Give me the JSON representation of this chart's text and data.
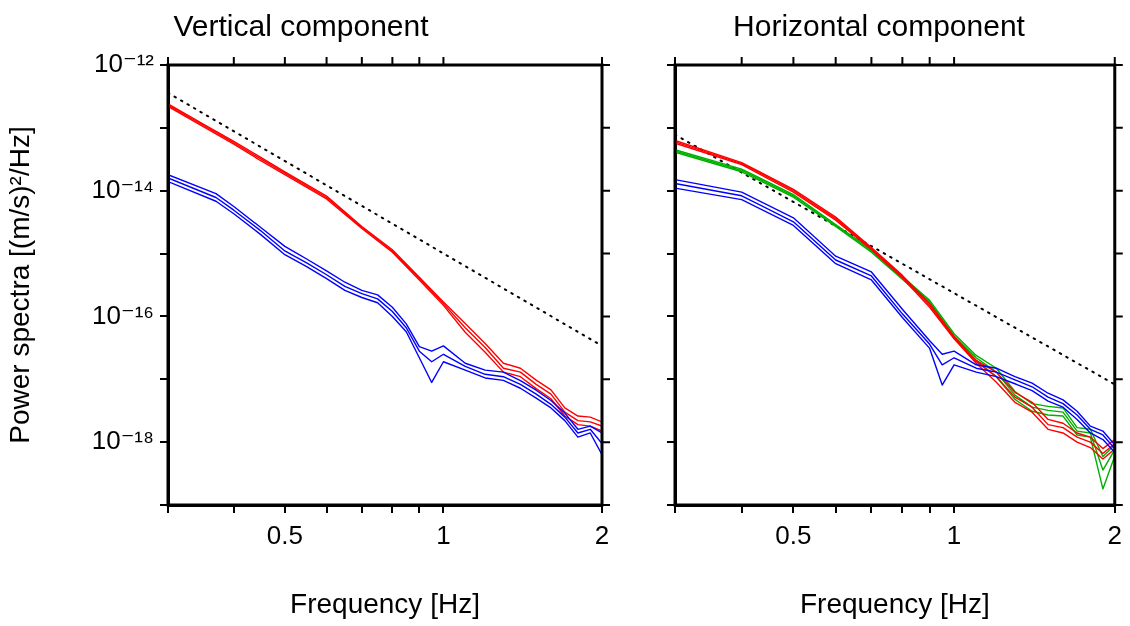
{
  "chart_data": [
    {
      "type": "line",
      "title": "Vertical component",
      "xlabel": "Frequency [Hz]",
      "ylabel": "Power spectra [(m/s)²/Hz]",
      "log": "xy",
      "grid": false,
      "marker": "none",
      "xlim": [
        0.3,
        2
      ],
      "xticks": [
        {
          "value": 0.3,
          "label": null
        },
        {
          "value": 0.4,
          "label": null
        },
        0.5,
        {
          "value": 0.6,
          "label": null
        },
        {
          "value": 0.7,
          "label": null
        },
        {
          "value": 0.8,
          "label": null
        },
        {
          "value": 0.9,
          "label": null
        },
        1,
        2
      ],
      "ylim": [
        1e-19,
        1e-12
      ],
      "yticks": [
        {
          "value": 1e-19,
          "label": null
        },
        {
          "value": 1e-18,
          "label": "10⁻¹⁸"
        },
        {
          "value": 1e-17,
          "label": null
        },
        {
          "value": 1e-16,
          "label": "10⁻¹⁶"
        },
        {
          "value": 1e-15,
          "label": null
        },
        {
          "value": 1e-14,
          "label": "10⁻¹⁴"
        },
        {
          "value": 1e-13,
          "label": null
        },
        {
          "value": 1e-12,
          "label": "10⁻¹²"
        }
      ],
      "series": [
        {
          "color": "#0000ff",
          "x": [
            0.3,
            0.37,
            0.4,
            0.45,
            0.5,
            0.55,
            0.6,
            0.65,
            0.7,
            0.75,
            0.8,
            0.85,
            0.9,
            0.95,
            1.0,
            1.1,
            1.2,
            1.3,
            1.4,
            1.5,
            1.6,
            1.7,
            1.8,
            1.9,
            2.0
          ],
          "values": [
            1.4e-14,
            6.8e-15,
            4.3e-15,
            2e-15,
            9.6e-16,
            6.2e-16,
            4e-16,
            2.6e-16,
            2e-16,
            1.65e-16,
            1e-16,
            5.7e-17,
            2.2e-17,
            8.9e-18,
            1.9e-17,
            1.4e-17,
            1.05e-17,
            9.6e-18,
            7.2e-18,
            5e-18,
            3.5e-18,
            2.2e-18,
            1.2e-18,
            1.4e-18,
            6.3e-19
          ]
        },
        {
          "color": "#0000ff",
          "x": [
            0.3,
            0.37,
            0.4,
            0.45,
            0.5,
            0.55,
            0.6,
            0.65,
            0.7,
            0.75,
            0.8,
            0.85,
            0.9,
            0.95,
            1.0,
            1.1,
            1.2,
            1.3,
            1.4,
            1.5,
            1.6,
            1.7,
            1.8,
            1.9,
            2.0
          ],
          "values": [
            1.8e-14,
            9e-15,
            5.6e-15,
            2.6e-15,
            1.3e-15,
            8.2e-16,
            5.3e-16,
            3.5e-16,
            2.6e-16,
            2.2e-16,
            1.4e-16,
            7.6e-17,
            3.3e-17,
            2.8e-17,
            3.4e-17,
            1.8e-17,
            1.4e-17,
            1.3e-17,
            9.5e-18,
            6.7e-18,
            4.6e-18,
            2.9e-18,
            1.6e-18,
            1.8e-18,
            1.4e-18
          ]
        },
        {
          "color": "#0000ff",
          "x": [
            0.3,
            0.37,
            0.4,
            0.45,
            0.5,
            0.55,
            0.6,
            0.65,
            0.7,
            0.75,
            0.8,
            0.85,
            0.9,
            0.95,
            1.0,
            1.1,
            1.2,
            1.3,
            1.4,
            1.5,
            1.6,
            1.7,
            1.8,
            1.9,
            2.0
          ],
          "values": [
            1.6e-14,
            7.8e-15,
            4.9e-15,
            2.3e-15,
            1.1e-15,
            7.1e-16,
            4.6e-16,
            3e-16,
            2.3e-16,
            1.9e-16,
            1.2e-16,
            6.6e-17,
            2.8e-17,
            1.9e-17,
            2.5e-17,
            1.6e-17,
            1.2e-17,
            1.1e-17,
            8.3e-18,
            5.8e-18,
            4e-18,
            2.5e-18,
            1.4e-18,
            1.6e-18,
            9.5e-19
          ]
        },
        {
          "color": "#ff0000",
          "x": [
            0.3,
            0.35,
            0.4,
            0.45,
            0.5,
            0.6,
            0.7,
            0.8,
            0.9,
            1.0,
            1.1,
            1.2,
            1.3,
            1.4,
            1.5,
            1.6,
            1.7,
            1.8,
            1.9,
            2.0
          ],
          "values": [
            2.2e-13,
            1.05e-13,
            5.5e-14,
            3e-14,
            1.8e-14,
            7.4e-15,
            2.5e-15,
            1.05e-15,
            3.8e-16,
            1.5e-16,
            5.6e-17,
            2.7e-17,
            1.3e-17,
            1.1e-17,
            7.1e-18,
            4.9e-18,
            2.6e-18,
            1.9e-18,
            1.8e-18,
            1.5e-18
          ]
        },
        {
          "color": "#ff0000",
          "x": [
            0.3,
            0.35,
            0.4,
            0.45,
            0.5,
            0.6,
            0.7,
            0.8,
            0.9,
            1.0,
            1.1,
            1.2,
            1.3,
            1.4,
            1.5,
            1.6,
            1.7,
            1.8,
            1.9,
            2.0
          ],
          "values": [
            2.4e-13,
            1.15e-13,
            6.1e-14,
            3.4e-14,
            2e-14,
            8.2e-15,
            2.7e-15,
            1.15e-15,
            4.2e-16,
            1.7e-16,
            7.7e-17,
            3.7e-17,
            1.8e-17,
            1.5e-17,
            9.7e-18,
            6.8e-18,
            3.5e-18,
            2.6e-18,
            2.5e-18,
            2.1e-18
          ]
        },
        {
          "color": "#ff0000",
          "x": [
            0.3,
            0.35,
            0.4,
            0.45,
            0.5,
            0.6,
            0.7,
            0.8,
            0.9,
            1.0,
            1.1,
            1.2,
            1.3,
            1.4,
            1.5,
            1.6,
            1.7,
            1.8,
            1.9,
            2.0
          ],
          "values": [
            2.3e-13,
            1.1e-13,
            5.8e-14,
            3.2e-14,
            1.9e-14,
            7.8e-15,
            2.6e-15,
            1.1e-15,
            4e-16,
            1.6e-16,
            6.6e-17,
            3.2e-17,
            1.5e-17,
            1.3e-17,
            8.3e-18,
            5.8e-18,
            3e-18,
            2.2e-18,
            2.1e-18,
            1.8e-18
          ]
        },
        {
          "color": "#000000",
          "line_style": "dotted",
          "x": [
            0.3,
            2
          ],
          "values": [
            3.6e-13,
            3.4e-17
          ]
        }
      ]
    },
    {
      "type": "line",
      "title": "Horizontal component",
      "xlabel": "Frequency [Hz]",
      "log": "xy",
      "grid": false,
      "marker": "none",
      "tick_labels": "x",
      "xlim": [
        0.3,
        2
      ],
      "xticks": [
        {
          "value": 0.3,
          "label": null
        },
        {
          "value": 0.4,
          "label": null
        },
        0.5,
        {
          "value": 0.6,
          "label": null
        },
        {
          "value": 0.7,
          "label": null
        },
        {
          "value": 0.8,
          "label": null
        },
        {
          "value": 0.9,
          "label": null
        },
        1,
        2
      ],
      "ylim": [
        1e-19,
        1e-12
      ],
      "yticks": [
        {
          "value": 1e-19,
          "label": null
        },
        {
          "value": 1e-18,
          "label": null
        },
        {
          "value": 1e-17,
          "label": null
        },
        {
          "value": 1e-16,
          "label": null
        },
        {
          "value": 1e-15,
          "label": null
        },
        {
          "value": 1e-14,
          "label": null
        },
        {
          "value": 1e-13,
          "label": null
        },
        {
          "value": 1e-12,
          "label": null
        }
      ],
      "series": [
        {
          "color": "#0000ff",
          "x": [
            0.3,
            0.4,
            0.5,
            0.6,
            0.7,
            0.8,
            0.9,
            0.95,
            1.0,
            1.1,
            1.2,
            1.3,
            1.4,
            1.5,
            1.6,
            1.7,
            1.8,
            1.9,
            2.0
          ],
          "values": [
            1.1e-14,
            7.2e-15,
            2.8e-15,
            6.9e-16,
            3.8e-16,
            9.6e-17,
            3.1e-17,
            8.1e-18,
            1.7e-17,
            1.3e-17,
            1.1e-17,
            8.5e-18,
            6.6e-18,
            4.5e-18,
            3.6e-18,
            2.3e-18,
            1.4e-18,
            1.1e-18,
            6.9e-19
          ]
        },
        {
          "color": "#0000ff",
          "x": [
            0.3,
            0.4,
            0.5,
            0.6,
            0.7,
            0.8,
            0.9,
            0.95,
            1.0,
            1.1,
            1.2,
            1.3,
            1.4,
            1.5,
            1.6,
            1.7,
            1.8,
            1.9,
            2.0
          ],
          "values": [
            1.5e-14,
            9.5e-15,
            3.7e-15,
            9.1e-16,
            5.1e-16,
            1.3e-16,
            4.1e-17,
            2.5e-17,
            2.8e-17,
            1.7e-17,
            1.5e-17,
            1.1e-17,
            8.7e-18,
            6e-18,
            4.7e-18,
            3.1e-18,
            1.8e-18,
            1.5e-18,
            9.1e-19
          ]
        },
        {
          "color": "#0000ff",
          "x": [
            0.3,
            0.4,
            0.5,
            0.6,
            0.7,
            0.8,
            0.9,
            0.95,
            1.0,
            1.1,
            1.2,
            1.3,
            1.4,
            1.5,
            1.6,
            1.7,
            1.8,
            1.9,
            2.0
          ],
          "values": [
            1.3e-14,
            8.3e-15,
            3.2e-15,
            7.9e-16,
            4.4e-16,
            1.1e-16,
            3.6e-17,
            1.7e-17,
            2.2e-17,
            1.5e-17,
            1.3e-17,
            9.8e-18,
            7.6e-18,
            5.2e-18,
            4.1e-18,
            2.7e-18,
            1.6e-18,
            1.3e-18,
            7.9e-19
          ]
        },
        {
          "color": "#ff0000",
          "x": [
            0.3,
            0.4,
            0.5,
            0.6,
            0.7,
            0.8,
            0.9,
            1.0,
            1.1,
            1.2,
            1.3,
            1.4,
            1.5,
            1.6,
            1.7,
            1.8,
            1.9,
            2.0
          ],
          "values": [
            5.7e-14,
            2.6e-14,
            9.5e-15,
            3.4e-15,
            1.15e-15,
            4.1e-16,
            1.4e-16,
            4.4e-17,
            1.8e-17,
            9e-18,
            4.3e-18,
            3e-18,
            1.6e-18,
            1.4e-18,
            1e-18,
            8.2e-19,
            5.4e-19,
            7.8e-19
          ]
        },
        {
          "color": "#ff0000",
          "x": [
            0.3,
            0.4,
            0.5,
            0.6,
            0.7,
            0.8,
            0.9,
            1.0,
            1.1,
            1.2,
            1.3,
            1.4,
            1.5,
            1.6,
            1.7,
            1.8,
            1.9,
            2.0
          ],
          "values": [
            6.3e-14,
            2.8e-14,
            1.05e-14,
            3.8e-15,
            1.25e-15,
            4.5e-16,
            1.6e-16,
            4.8e-17,
            2e-17,
            1.3e-17,
            6.2e-18,
            4.3e-18,
            2.3e-18,
            2e-18,
            1.4e-18,
            1.2e-18,
            7.9e-19,
            1.1e-18
          ]
        },
        {
          "color": "#ff0000",
          "x": [
            0.3,
            0.4,
            0.5,
            0.6,
            0.7,
            0.8,
            0.9,
            1.0,
            1.1,
            1.2,
            1.3,
            1.4,
            1.5,
            1.6,
            1.7,
            1.8,
            1.9,
            2.0
          ],
          "values": [
            6e-14,
            2.7e-14,
            1e-14,
            3.6e-15,
            1.2e-15,
            4.3e-16,
            1.5e-16,
            4.6e-17,
            1.9e-17,
            1.1e-17,
            5.2e-18,
            3.6e-18,
            1.9e-18,
            1.7e-18,
            1.2e-18,
            1e-18,
            6.6e-19,
            9.5e-19
          ]
        },
        {
          "color": "#00b000",
          "x": [
            0.3,
            0.4,
            0.5,
            0.6,
            0.7,
            0.8,
            0.9,
            1.0,
            1.1,
            1.2,
            1.3,
            1.4,
            1.5,
            1.6,
            1.7,
            1.8,
            1.9,
            2.0
          ],
          "values": [
            4.1e-14,
            2e-14,
            7.9e-15,
            2.7e-15,
            1.05e-15,
            3.9e-16,
            1.6e-16,
            4.5e-17,
            2e-17,
            1.1e-17,
            4.8e-18,
            3.1e-18,
            2.7e-18,
            2.6e-18,
            1.3e-18,
            1.2e-18,
            1.8e-19,
            6e-19
          ]
        },
        {
          "color": "#00b000",
          "x": [
            0.3,
            0.4,
            0.5,
            0.6,
            0.7,
            0.8,
            0.9,
            1.0,
            1.1,
            1.2,
            1.3,
            1.4,
            1.5,
            1.6,
            1.7,
            1.8,
            1.9,
            2.0
          ],
          "values": [
            4.5e-14,
            2.2e-14,
            8.7e-15,
            2.9e-15,
            1.15e-15,
            4.3e-16,
            1.8e-16,
            5.3e-17,
            2.4e-17,
            1.5e-17,
            6.4e-18,
            4.1e-18,
            3.7e-18,
            3.5e-18,
            1.7e-18,
            1.6e-18,
            5.9e-19,
            9e-19
          ]
        },
        {
          "color": "#00b000",
          "x": [
            0.3,
            0.4,
            0.5,
            0.6,
            0.7,
            0.8,
            0.9,
            1.0,
            1.1,
            1.2,
            1.3,
            1.4,
            1.5,
            1.6,
            1.7,
            1.8,
            1.9,
            2.0
          ],
          "values": [
            4.3e-14,
            2.1e-14,
            8.3e-15,
            2.8e-15,
            1.1e-15,
            4.1e-16,
            1.7e-16,
            4.9e-17,
            2.2e-17,
            1.3e-17,
            5.6e-18,
            3.6e-18,
            3.2e-18,
            3e-18,
            1.5e-18,
            1.4e-18,
            3.6e-19,
            7.6e-19
          ]
        },
        {
          "color": "#000000",
          "line_style": "dotted",
          "x": [
            0.3,
            2
          ],
          "values": [
            7.8e-14,
            8.3e-18
          ]
        }
      ]
    }
  ]
}
